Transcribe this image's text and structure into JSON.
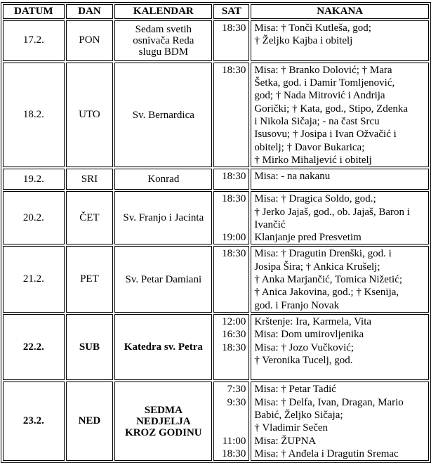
{
  "headers": {
    "datum": "DATUM",
    "dan": "DAN",
    "kalendar": "KALENDAR",
    "sat": "SAT",
    "nakana": "NAKANA"
  },
  "rows": [
    {
      "date": "17.2.",
      "day": "PON",
      "calendar": [
        "Sedam svetih",
        "osnivača Reda",
        "slugu BDM"
      ],
      "bold": false,
      "times": [
        "18:30",
        "",
        ""
      ],
      "nakana": [
        "Misa: † Tonči Kutleša, god;",
        "† Željko Kajba i obitelj",
        ""
      ]
    },
    {
      "date": "18.2.",
      "day": "UTO",
      "calendar": [
        "Sv. Bernardica"
      ],
      "bold": false,
      "times": [
        "18:30",
        "",
        "",
        "",
        "",
        "",
        "",
        ""
      ],
      "nakana": [
        "Misa: † Branko Dolović; † Mara",
        "Šetka, god. i Damir Tomljenović,",
        "god; † Nada Mitrović i Andrija",
        "Gorički; † Kata, god., Stipo, Zdenka",
        "i Nikola Sičaja; - na čast Srcu",
        "Isusovu; † Josipa i Ivan Ožvačić i",
        "obitelj; † Davor Bukarica;",
        "† Mirko Mihaljević i obitelj"
      ]
    },
    {
      "date": "19.2.",
      "day": "SRI",
      "calendar": [
        "Konrad"
      ],
      "bold": false,
      "times": [
        "18:30"
      ],
      "nakana": [
        "Misa: - na nakanu"
      ]
    },
    {
      "date": "20.2.",
      "day": "ČET",
      "calendar": [
        "Sv. Franjo i Jacinta"
      ],
      "bold": false,
      "times": [
        "18:30",
        "",
        "",
        "19:00"
      ],
      "nakana": [
        "Misa: † Dragica Soldo, god.;",
        "† Jerko Jajaš, god., ob. Jajaš, Baron i",
        "Ivančić",
        "Klanjanje pred Presvetim"
      ]
    },
    {
      "date": "21.2.",
      "day": "PET",
      "calendar": [
        "Sv. Petar Damiani"
      ],
      "bold": false,
      "times": [
        "18:30",
        "",
        "",
        "",
        ""
      ],
      "nakana": [
        "Misa: † Dragutin Drenški, god. i",
        "Josipa Šira; † Ankica Krušelj;",
        "† Anka Marjančić, Tomica Nižetić;",
        "† Anica Jakovina, god.; † Ksenija,",
        "god. i Franjo Novak"
      ]
    },
    {
      "date": "22.2.",
      "day": "SUB",
      "calendar": [
        "Katedra sv. Petra"
      ],
      "bold": true,
      "times": [
        "12:00",
        "16:30",
        "18:30",
        "",
        ""
      ],
      "nakana": [
        "Krštenje: Ira, Karmela, Vita",
        "Misa: Dom umirovljenika",
        "Misa: † Jozo Vučković;",
        "† Veronika Tucelj, god.",
        ""
      ]
    },
    {
      "date": "23.2.",
      "day": "NED",
      "calendar": [
        "SEDMA",
        "NEDJELJA",
        "KROZ GODINU"
      ],
      "bold": true,
      "times": [
        "7:30",
        "9:30",
        "",
        "",
        "11:00",
        "18:30"
      ],
      "nakana": [
        "Misa: † Petar Tadić",
        "Misa: † Delfa, Ivan, Dragan, Mario",
        "Babić, Željko Sičaja;",
        "† Vladimir Sečen",
        "Misa: ŽUPNA",
        "Misa: † Anđela i Dragutin Sremac"
      ]
    }
  ]
}
